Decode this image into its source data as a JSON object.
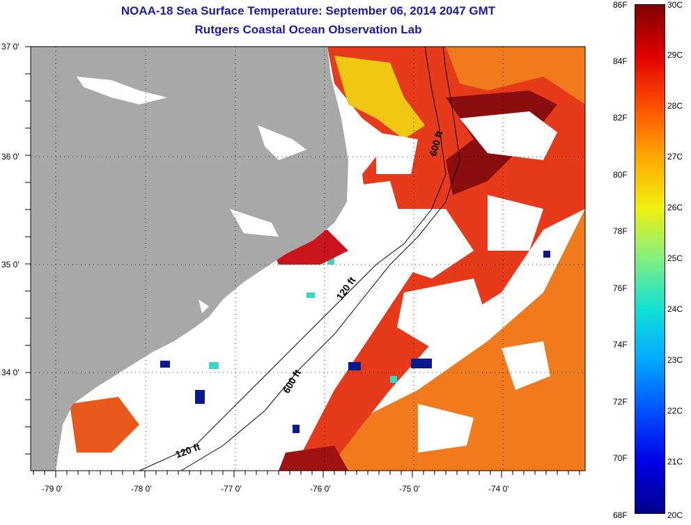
{
  "title": {
    "line1": "NOAA-18 Sea Surface Temperature:  September 06, 2014 2047 GMT",
    "line2": "Rutgers Coastal Ocean Observation Lab"
  },
  "colors": {
    "title": "#1a1aa6",
    "land": "#a8a8a8",
    "cloud": "#ffffff",
    "sst_warm": "#e8461c",
    "sst_hot": "#8a0d10",
    "sst_cool": "#f28a1c",
    "sst_cold": "#0a1a8c"
  },
  "map": {
    "lat_labels": [
      "37 0'",
      "36 0'",
      "35 0'",
      "34 0'"
    ],
    "lon_labels": [
      "-79 0'",
      "-78 0'",
      "-77 0'",
      "-76 0'",
      "-75 0'",
      "-74 0'"
    ],
    "contours": [
      {
        "label": "600 ft"
      },
      {
        "label": "120 ft"
      },
      {
        "label": "600 ft"
      },
      {
        "label": "120 ft"
      }
    ]
  },
  "colorbar": {
    "fahrenheit": [
      "86F",
      "84F",
      "82F",
      "80F",
      "78F",
      "76F",
      "74F",
      "72F",
      "70F",
      "68F"
    ],
    "celsius": [
      "30C",
      "29C",
      "28C",
      "27C",
      "26C",
      "25C",
      "24C",
      "23C",
      "22C",
      "21C",
      "20C"
    ],
    "range_c": [
      20,
      30
    ],
    "range_f": [
      68,
      86
    ]
  }
}
